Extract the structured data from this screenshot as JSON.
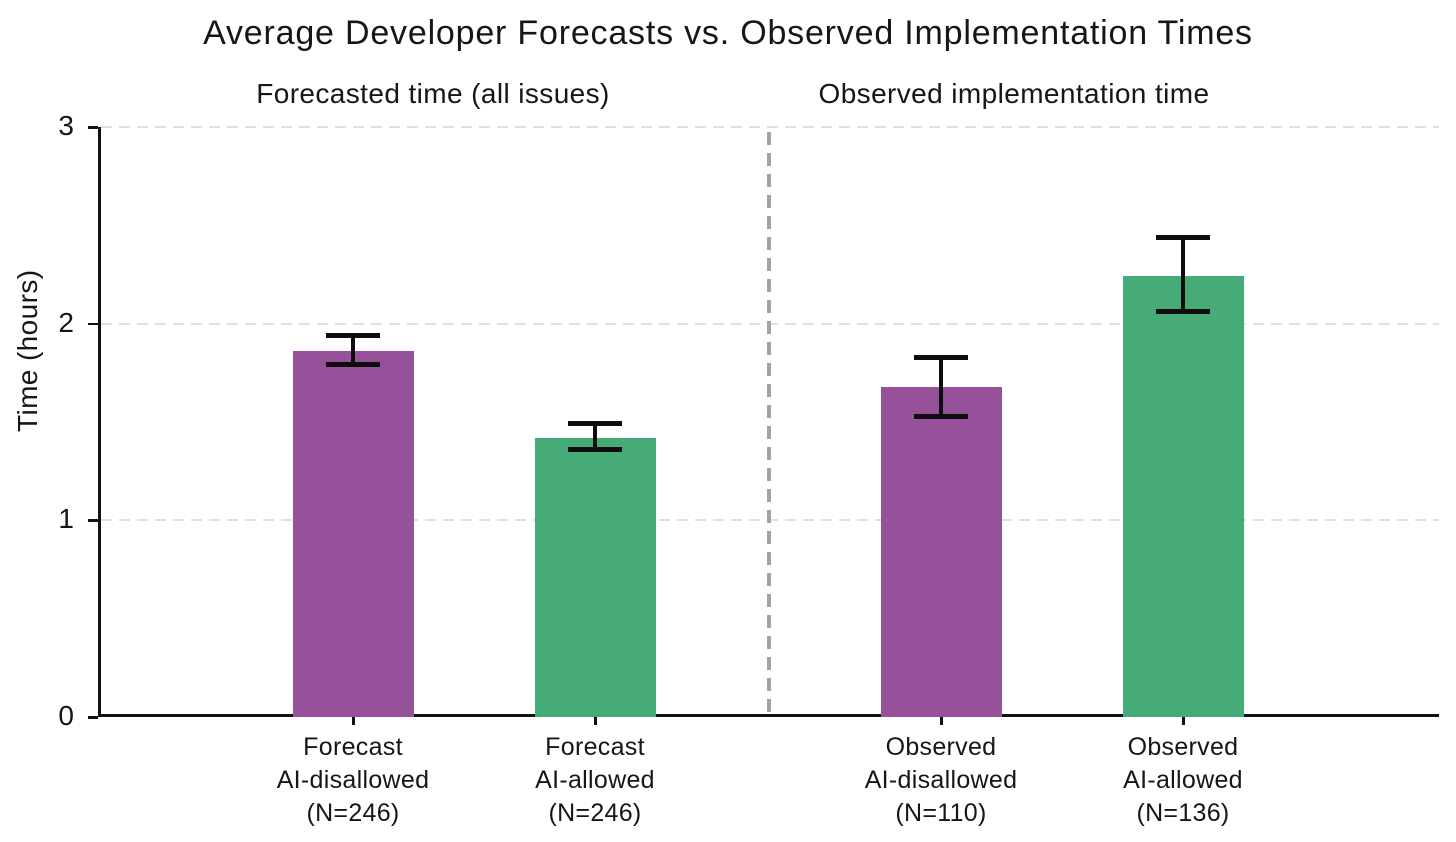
{
  "title": "Average Developer Forecasts vs. Observed Implementation Times",
  "chart_data": {
    "type": "bar",
    "title": "Average Developer Forecasts vs. Observed Implementation Times",
    "ylabel": "Time (hours)",
    "ylim": [
      0,
      3
    ],
    "yticks": [
      "0",
      "1",
      "2",
      "3"
    ],
    "grid": "horizontal-dashed",
    "legend": "none",
    "error_bars": "95% confidence intervals, black caps",
    "colors": {
      "ai_disallowed": "#96519B",
      "ai_allowed": "#46AB76"
    },
    "panels": [
      {
        "title": "Forecasted time (all issues)",
        "bars": [
          {
            "label_lines": [
              "Forecast",
              "AI-disallowed",
              "(N=246)"
            ],
            "value": 1.86,
            "ci_low": 1.79,
            "ci_high": 1.94,
            "color": "#96519B"
          },
          {
            "label_lines": [
              "Forecast",
              "AI-allowed",
              "(N=246)"
            ],
            "value": 1.42,
            "ci_low": 1.36,
            "ci_high": 1.49,
            "color": "#46AB76"
          }
        ]
      },
      {
        "title": "Observed implementation time",
        "bars": [
          {
            "label_lines": [
              "Observed",
              "AI-disallowed",
              "(N=110)"
            ],
            "value": 1.68,
            "ci_low": 1.53,
            "ci_high": 1.83,
            "color": "#96519B"
          },
          {
            "label_lines": [
              "Observed",
              "AI-allowed",
              "(N=136)"
            ],
            "value": 2.24,
            "ci_low": 2.06,
            "ci_high": 2.44,
            "color": "#46AB76"
          }
        ]
      }
    ]
  }
}
